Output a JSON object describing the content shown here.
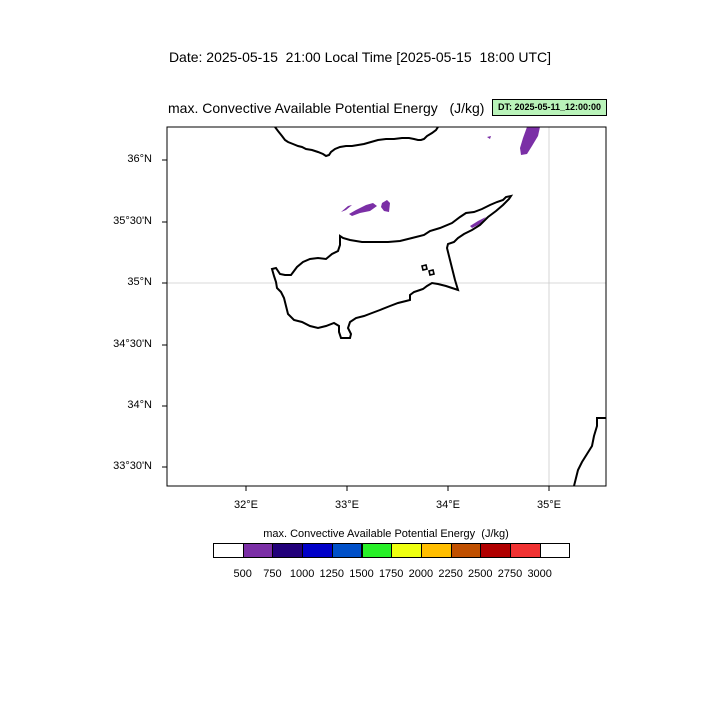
{
  "header": {
    "date_line": "Date: 2025-05-15  21:00 Local Time [2025-05-15  18:00 UTC]"
  },
  "map": {
    "title": "max. Convective Available Potential Energy   (J/kg)",
    "dt_badge": "DT: 2025-05-11_12:00:00",
    "lat_labels": [
      "36°N",
      "35°30'N",
      "35°N",
      "34°30'N",
      "34°N",
      "33°30'N"
    ],
    "lon_labels": [
      "32°E",
      "33°E",
      "34°E",
      "35°E"
    ]
  },
  "colorbar": {
    "title": "max. Convective Available Potential Energy  (J/kg)",
    "labels": [
      "500",
      "750",
      "1000",
      "1250",
      "1500",
      "1750",
      "2000",
      "2250",
      "2500",
      "2750",
      "3000"
    ],
    "colors": [
      "#ffffff",
      "#7b2fa6",
      "#22007a",
      "#0000c8",
      "#0050c8",
      "#28f028",
      "#eeff10",
      "#ffbe00",
      "#c05000",
      "#b00000",
      "#f03232",
      "#ffffff"
    ]
  },
  "colors": {
    "cape_shading": "#7b2fa6",
    "coastline": "#000000",
    "gridline": "#cccccc",
    "badge_bg": "#b9f3b9"
  }
}
